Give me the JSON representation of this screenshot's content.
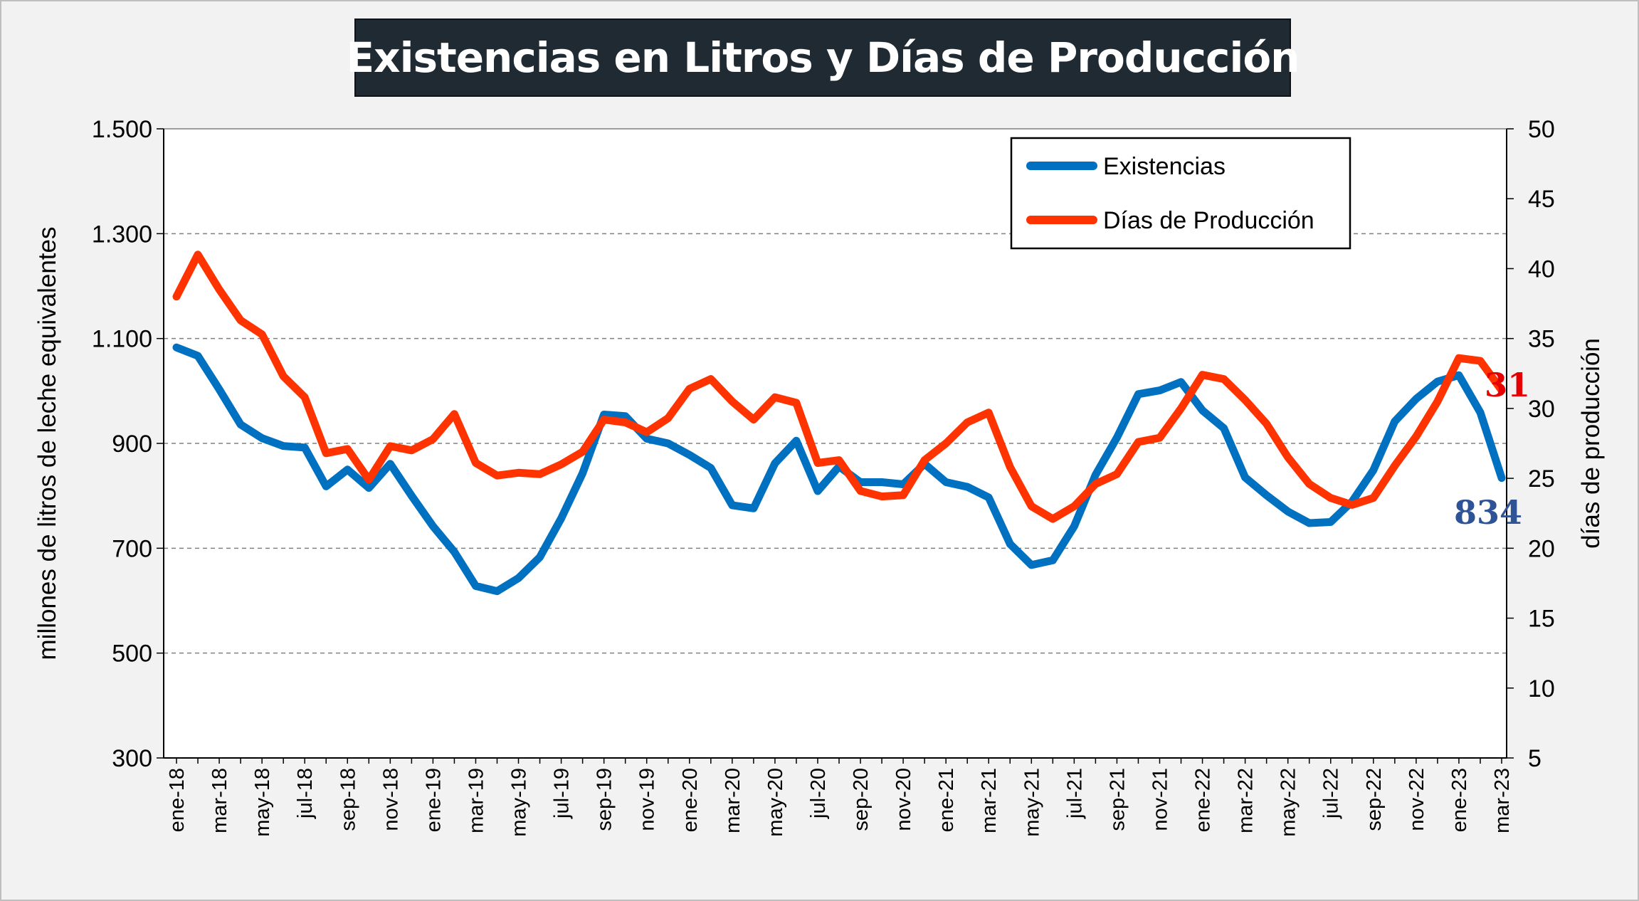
{
  "title": "Existencias en Litros y Días de Producción",
  "colors": {
    "existencias": "#0070c0",
    "dias": "#ff3300",
    "label_existencias": "#2f5496",
    "label_dias": "#e60000",
    "background": "#f2f2f2",
    "plot_background": "#ffffff",
    "title_background": "#1f2a33"
  },
  "chart_data": {
    "type": "line",
    "title": "Existencias en Litros y Días de Producción",
    "ylabel": "millones de litros de leche equivalentes",
    "y2label": "días de producción",
    "xlabel": "",
    "ylim": [
      300,
      1500
    ],
    "y2lim": [
      5,
      50
    ],
    "yticks": [
      "300",
      "500",
      "700",
      "900",
      "1.100",
      "1.300",
      "1.500"
    ],
    "y2ticks": [
      "5",
      "10",
      "15",
      "20",
      "25",
      "30",
      "35",
      "40",
      "45",
      "50"
    ],
    "grid": "horizontal dashed",
    "legend_position": "top-right",
    "x": [
      "ene-18",
      "feb-18",
      "mar-18",
      "abr-18",
      "may-18",
      "jun-18",
      "jul-18",
      "ago-18",
      "sep-18",
      "oct-18",
      "nov-18",
      "dic-18",
      "ene-19",
      "feb-19",
      "mar-19",
      "abr-19",
      "may-19",
      "jun-19",
      "jul-19",
      "ago-19",
      "sep-19",
      "oct-19",
      "nov-19",
      "dic-19",
      "ene-20",
      "feb-20",
      "mar-20",
      "abr-20",
      "may-20",
      "jun-20",
      "jul-20",
      "ago-20",
      "sep-20",
      "oct-20",
      "nov-20",
      "dic-20",
      "ene-21",
      "feb-21",
      "mar-21",
      "abr-21",
      "may-21",
      "jun-21",
      "jul-21",
      "ago-21",
      "sep-21",
      "oct-21",
      "nov-21",
      "dic-21",
      "ene-22",
      "feb-22",
      "mar-22",
      "abr-22",
      "may-22",
      "jun-22",
      "jul-22",
      "ago-22",
      "sep-22",
      "oct-22",
      "nov-22",
      "dic-22",
      "ene-23",
      "feb-23",
      "mar-23"
    ],
    "x_tick_labels": [
      "ene-18",
      "mar-18",
      "may-18",
      "jul-18",
      "sep-18",
      "nov-18",
      "ene-19",
      "mar-19",
      "may-19",
      "jul-19",
      "sep-19",
      "nov-19",
      "ene-20",
      "mar-20",
      "may-20",
      "jul-20",
      "sep-20",
      "nov-20",
      "ene-21",
      "mar-21",
      "may-21",
      "jul-21",
      "sep-21",
      "nov-21",
      "ene-22",
      "mar-22",
      "may-22",
      "jul-22",
      "sep-22",
      "nov-22",
      "ene-23",
      "mar-23"
    ],
    "series": [
      {
        "name": "Existencias",
        "axis": "left",
        "color": "#0070c0",
        "values": [
          1083,
          1067,
          1003,
          936,
          910,
          895,
          892,
          818,
          850,
          815,
          861,
          800,
          742,
          693,
          628,
          618,
          643,
          683,
          757,
          843,
          955,
          952,
          909,
          900,
          878,
          853,
          782,
          776,
          862,
          905,
          809,
          856,
          826,
          826,
          822,
          861,
          826,
          817,
          797,
          708,
          668,
          677,
          742,
          840,
          911,
          994,
          1001,
          1017,
          963,
          929,
          835,
          801,
          770,
          748,
          750,
          789,
          849,
          942,
          985,
          1018,
          1030,
          959,
          834
        ],
        "end_label": "834"
      },
      {
        "name": "Días de Producción",
        "axis": "right",
        "color": "#ff3300",
        "values": [
          38,
          41,
          38.5,
          36.3,
          35.3,
          32.3,
          30.8,
          26.8,
          27.1,
          24.9,
          27.3,
          27,
          27.8,
          29.6,
          26.1,
          25.2,
          25.4,
          25.3,
          26,
          26.9,
          29.2,
          29,
          28.3,
          29.3,
          31.4,
          32.1,
          30.5,
          29.2,
          30.8,
          30.4,
          26.1,
          26.3,
          24.1,
          23.7,
          23.8,
          26.3,
          27.5,
          29,
          29.7,
          25.8,
          23,
          22.1,
          23,
          24.6,
          25.3,
          27.6,
          27.9,
          30,
          32.4,
          32.1,
          30.6,
          28.9,
          26.5,
          24.6,
          23.6,
          23.1,
          23.6,
          25.9,
          28,
          30.5,
          33.6,
          33.4,
          31.3
        ],
        "end_label": "31"
      }
    ]
  },
  "legend": {
    "items": [
      {
        "label": "Existencias",
        "color": "#0070c0"
      },
      {
        "label": "Días de Producción",
        "color": "#ff3300"
      }
    ]
  }
}
